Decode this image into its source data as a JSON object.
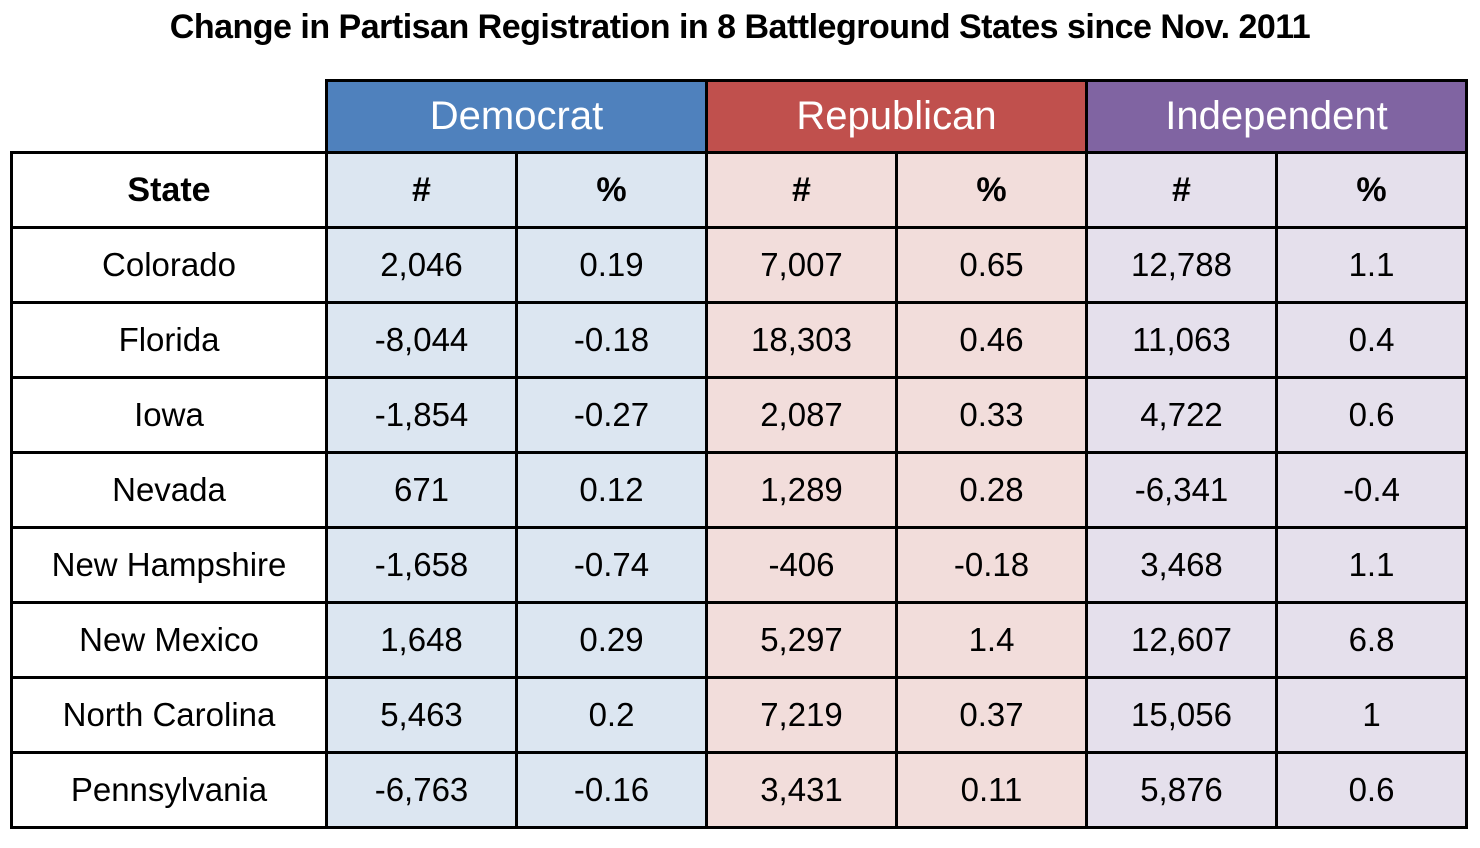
{
  "title": "Change in Partisan Registration in 8 Battleground States since Nov. 2011",
  "colors": {
    "democrat_header": "#4f81bd",
    "republican_header": "#c0504d",
    "independent_header": "#8064a2",
    "democrat_light": "#dce6f1",
    "republican_light": "#f2dddb",
    "independent_light": "#e5e0ec",
    "header_text": "#ffffff",
    "border": "#000000"
  },
  "table": {
    "groups": [
      {
        "label": "Democrat"
      },
      {
        "label": "Republican"
      },
      {
        "label": "Independent"
      }
    ],
    "state_header": "State",
    "subheaders": [
      "#",
      "%"
    ],
    "rows": [
      {
        "state": "Colorado",
        "cells": [
          "2,046",
          "0.19",
          "7,007",
          "0.65",
          "12,788",
          "1.1"
        ]
      },
      {
        "state": "Florida",
        "cells": [
          "-8,044",
          "-0.18",
          "18,303",
          "0.46",
          "11,063",
          "0.4"
        ]
      },
      {
        "state": "Iowa",
        "cells": [
          "-1,854",
          "-0.27",
          "2,087",
          "0.33",
          "4,722",
          "0.6"
        ]
      },
      {
        "state": "Nevada",
        "cells": [
          "671",
          "0.12",
          "1,289",
          "0.28",
          "-6,341",
          "-0.4"
        ]
      },
      {
        "state": "New Hampshire",
        "cells": [
          "-1,658",
          "-0.74",
          "-406",
          "-0.18",
          "3,468",
          "1.1"
        ]
      },
      {
        "state": "New Mexico",
        "cells": [
          "1,648",
          "0.29",
          "5,297",
          "1.4",
          "12,607",
          "6.8"
        ]
      },
      {
        "state": "North Carolina",
        "cells": [
          "5,463",
          "0.2",
          "7,219",
          "0.37",
          "15,056",
          "1"
        ]
      },
      {
        "state": "Pennsylvania",
        "cells": [
          "-6,763",
          "-0.16",
          "3,431",
          "0.11",
          "5,876",
          "0.6"
        ]
      }
    ]
  },
  "chart_data": {
    "type": "table",
    "title": "Change in Partisan Registration in 8 Battleground States since Nov. 2011",
    "column_groups": [
      "Democrat",
      "Republican",
      "Independent"
    ],
    "columns": [
      "State",
      "Democrat #",
      "Democrat %",
      "Republican #",
      "Republican %",
      "Independent #",
      "Independent %"
    ],
    "rows": [
      [
        "Colorado",
        2046,
        0.19,
        7007,
        0.65,
        12788,
        1.1
      ],
      [
        "Florida",
        -8044,
        -0.18,
        18303,
        0.46,
        11063,
        0.4
      ],
      [
        "Iowa",
        -1854,
        -0.27,
        2087,
        0.33,
        4722,
        0.6
      ],
      [
        "Nevada",
        671,
        0.12,
        1289,
        0.28,
        -6341,
        -0.4
      ],
      [
        "New Hampshire",
        -1658,
        -0.74,
        -406,
        -0.18,
        3468,
        1.1
      ],
      [
        "New Mexico",
        1648,
        0.29,
        5297,
        1.4,
        12607,
        6.8
      ],
      [
        "North Carolina",
        5463,
        0.2,
        7219,
        0.37,
        15056,
        1
      ],
      [
        "Pennsylvania",
        -6763,
        -0.16,
        3431,
        0.11,
        5876,
        0.6
      ]
    ]
  }
}
